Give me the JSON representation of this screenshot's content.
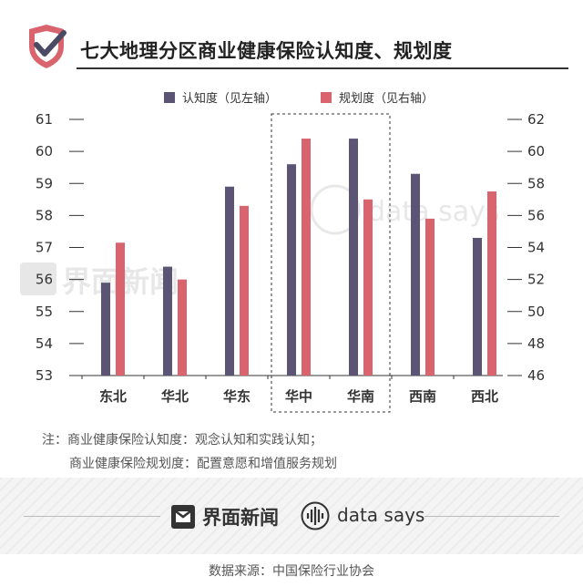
{
  "header": {
    "title": "七大地理分区商业健康保险认知度、规划度",
    "logo_icon": "shield-check-icon"
  },
  "chart_data": {
    "type": "bar",
    "categories": [
      "东北",
      "华北",
      "华东",
      "华中",
      "华南",
      "西南",
      "西北"
    ],
    "highlighted_categories": [
      "华中",
      "华南"
    ],
    "series": [
      {
        "name": "认知度（见左轴）",
        "axis": "left",
        "color": "#5c5475",
        "values": [
          55.9,
          56.4,
          58.9,
          59.6,
          60.4,
          59.3,
          57.3
        ]
      },
      {
        "name": "规划度（见右轴）",
        "axis": "right",
        "color": "#d9646d",
        "values": [
          54.3,
          52.0,
          56.6,
          60.8,
          57.0,
          55.8,
          57.5
        ]
      }
    ],
    "y_left": {
      "min": 53,
      "max": 61,
      "ticks": [
        "53",
        "54",
        "55",
        "56",
        "57",
        "58",
        "59",
        "60",
        "61"
      ]
    },
    "y_right": {
      "min": 46,
      "max": 62,
      "ticks": [
        "46",
        "48",
        "50",
        "52",
        "54",
        "56",
        "58",
        "60",
        "62"
      ]
    },
    "legend_position": "top",
    "grid": false
  },
  "notes": {
    "line1": "注：商业健康保险认知度：观念认知和实践认知；",
    "line2": "商业健康保险规划度：配置意愿和增值服务规划"
  },
  "footer": {
    "brand": "界面新闻",
    "brand_icon": "jiemian-logo-icon",
    "datasays": "data says",
    "datasays_icon": "waveform-icon",
    "source": "数据来源：中国保险行业协会"
  }
}
